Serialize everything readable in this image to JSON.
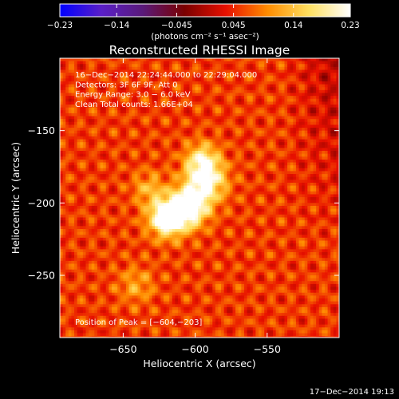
{
  "chart_data": {
    "type": "heatmap",
    "title": "Reconstructed RHESSI Image",
    "xlabel": "Heliocentric X (arcsec)",
    "ylabel": "Heliocentric Y (arcsec)",
    "xlim": [
      -694,
      -500
    ],
    "ylim": [
      -293,
      -100
    ],
    "x_ticks": [
      -650,
      -600,
      -550
    ],
    "y_ticks": [
      -150,
      -200,
      -250
    ],
    "x_tick_labels": [
      "−650",
      "−600",
      "−550"
    ],
    "y_tick_labels": [
      "−150",
      "−200",
      "−250"
    ],
    "colorbar": {
      "min": -0.23,
      "max": 0.23,
      "ticks": [
        -0.23,
        -0.14,
        -0.045,
        0.045,
        0.14,
        0.23
      ],
      "tick_labels": [
        "−0.23",
        "−0.14",
        "−0.045",
        "0.045",
        "0.14",
        "0.23"
      ],
      "unit_label": "(photons cm⁻² s⁻¹ asec⁻²)",
      "colormap": [
        "#0000ff",
        "#5a1fc8",
        "#5a1a7a",
        "#7a0000",
        "#e81000",
        "#ff8c00",
        "#ffe060",
        "#ffffff"
      ]
    },
    "annotations": [
      "16−Dec−2014 22:24:44.000 to 22:29:04.000",
      "Detectors: 3F 6F 9F, Att 0",
      "Energy Range: 3.0 − 6.0 keV",
      "Clean    Total counts: 1.66E+04"
    ],
    "peak_label": "Position of Peak = [−604,−203]",
    "peak_position": [
      -604,
      -203
    ],
    "sources": [
      {
        "x": -619,
        "y": -210,
        "amplitude": 0.23,
        "sigma": 9
      },
      {
        "x": -604,
        "y": -203,
        "amplitude": 0.2,
        "sigma": 9
      },
      {
        "x": -593,
        "y": -185,
        "amplitude": 0.17,
        "sigma": 10
      },
      {
        "x": -595,
        "y": -170,
        "amplitude": 0.12,
        "sigma": 8
      },
      {
        "x": -632,
        "y": -190,
        "amplitude": 0.07,
        "sigma": 8
      },
      {
        "x": -641,
        "y": -257,
        "amplitude": 0.06,
        "sigma": 9
      }
    ],
    "background_level": 0.055,
    "grid": false
  },
  "footer": {
    "timestamp": "17−Dec−2014 19:13"
  }
}
